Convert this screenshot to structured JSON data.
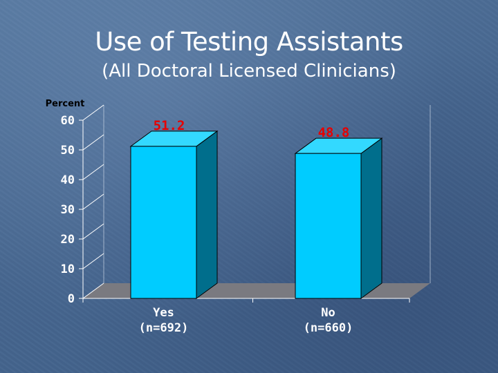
{
  "slide": {
    "title": "Use of Testing Assistants",
    "subtitle": "(All Doctoral Licensed Clinicians)"
  },
  "chart_data": {
    "type": "bar",
    "ylabel": "Percent",
    "categories": [
      "Yes\n(n=692)",
      "No\n(n=660)"
    ],
    "series": [
      {
        "values": [
          51.2,
          48.8
        ]
      }
    ],
    "ylim": [
      0,
      60
    ],
    "yticks": [
      0,
      10,
      20,
      30,
      40,
      50,
      60
    ],
    "grid": false,
    "legend": "none",
    "three_d": true,
    "colors": {
      "bar_front": "#00ccff",
      "bar_side": "#006e8c",
      "bar_top": "#33d9ff",
      "floor": "#7a7a80",
      "data_label": "#e60000",
      "axis_text": "#ffffff",
      "ylabel_text": "#000000"
    }
  }
}
